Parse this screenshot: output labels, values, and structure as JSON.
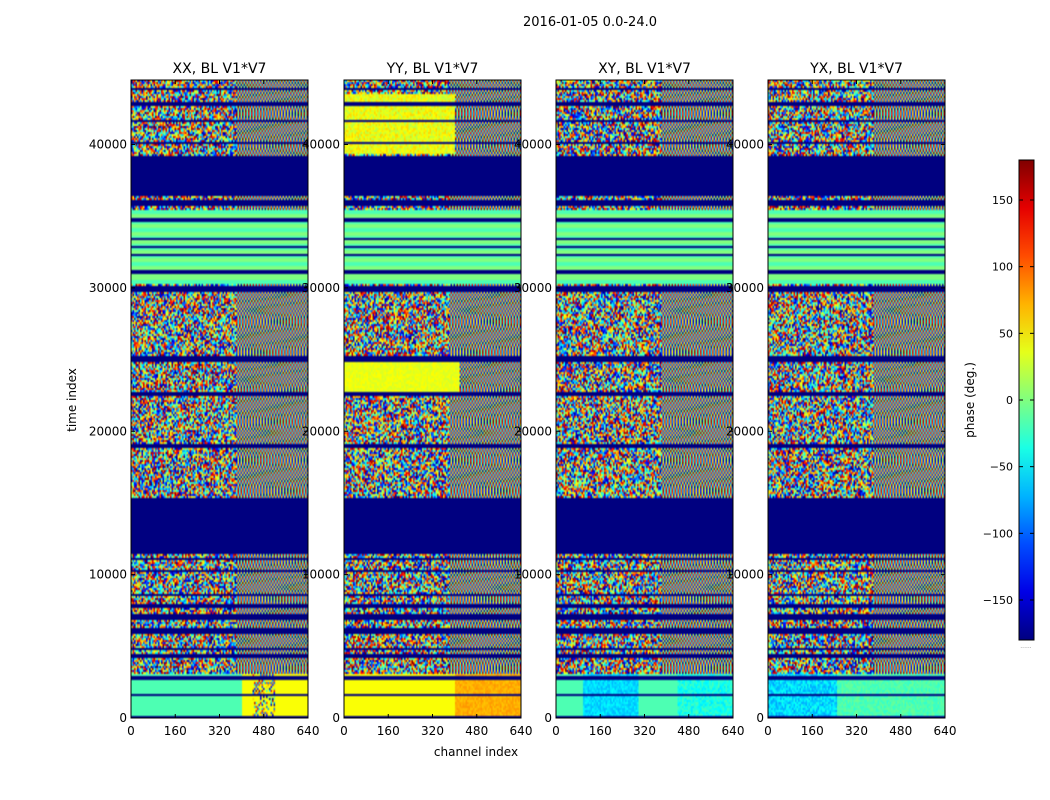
{
  "chart_data": {
    "type": "heatmap",
    "title": "2016-01-05 0.0-24.0",
    "xlabel": "channel index",
    "ylabel": "time index",
    "xlim": [
      0,
      640
    ],
    "ylim": [
      0,
      44500
    ],
    "x_ticks": [
      0,
      160,
      320,
      480,
      640
    ],
    "y_ticks": [
      0,
      10000,
      20000,
      30000,
      40000
    ],
    "panels": [
      {
        "title": "XX, BL V1*V7",
        "variant": "xx"
      },
      {
        "title": "YY, BL V1*V7",
        "variant": "yy"
      },
      {
        "title": "XY, BL V1*V7",
        "variant": "xy"
      },
      {
        "title": "YX, BL V1*V7",
        "variant": "yx"
      }
    ],
    "colorbar": {
      "label": "phase (deg.)",
      "range": [
        -180,
        180
      ],
      "ticks": [
        -150,
        -100,
        -50,
        0,
        50,
        100,
        150
      ],
      "colormap": "jet",
      "below_label": "......"
    },
    "flagged_time_ranges": [
      [
        0,
        100
      ],
      [
        1500,
        1700
      ],
      [
        2700,
        2900
      ],
      [
        4200,
        4500
      ],
      [
        4700,
        4850
      ],
      [
        5800,
        6300
      ],
      [
        6800,
        7200
      ],
      [
        7700,
        7900
      ],
      [
        8500,
        8700
      ],
      [
        10200,
        10300
      ],
      [
        11000,
        11200
      ],
      [
        11500,
        15400
      ],
      [
        18900,
        19100
      ],
      [
        22500,
        22700
      ],
      [
        24800,
        25300
      ],
      [
        29700,
        30200
      ],
      [
        31000,
        31200
      ],
      [
        31600,
        31700
      ],
      [
        32200,
        32300
      ],
      [
        32800,
        32900
      ],
      [
        33400,
        33500
      ],
      [
        34600,
        34900
      ],
      [
        35700,
        36100
      ],
      [
        36400,
        39200
      ],
      [
        40100,
        40200
      ],
      [
        41600,
        41700
      ],
      [
        42700,
        42900
      ],
      [
        43800,
        43900
      ]
    ]
  }
}
